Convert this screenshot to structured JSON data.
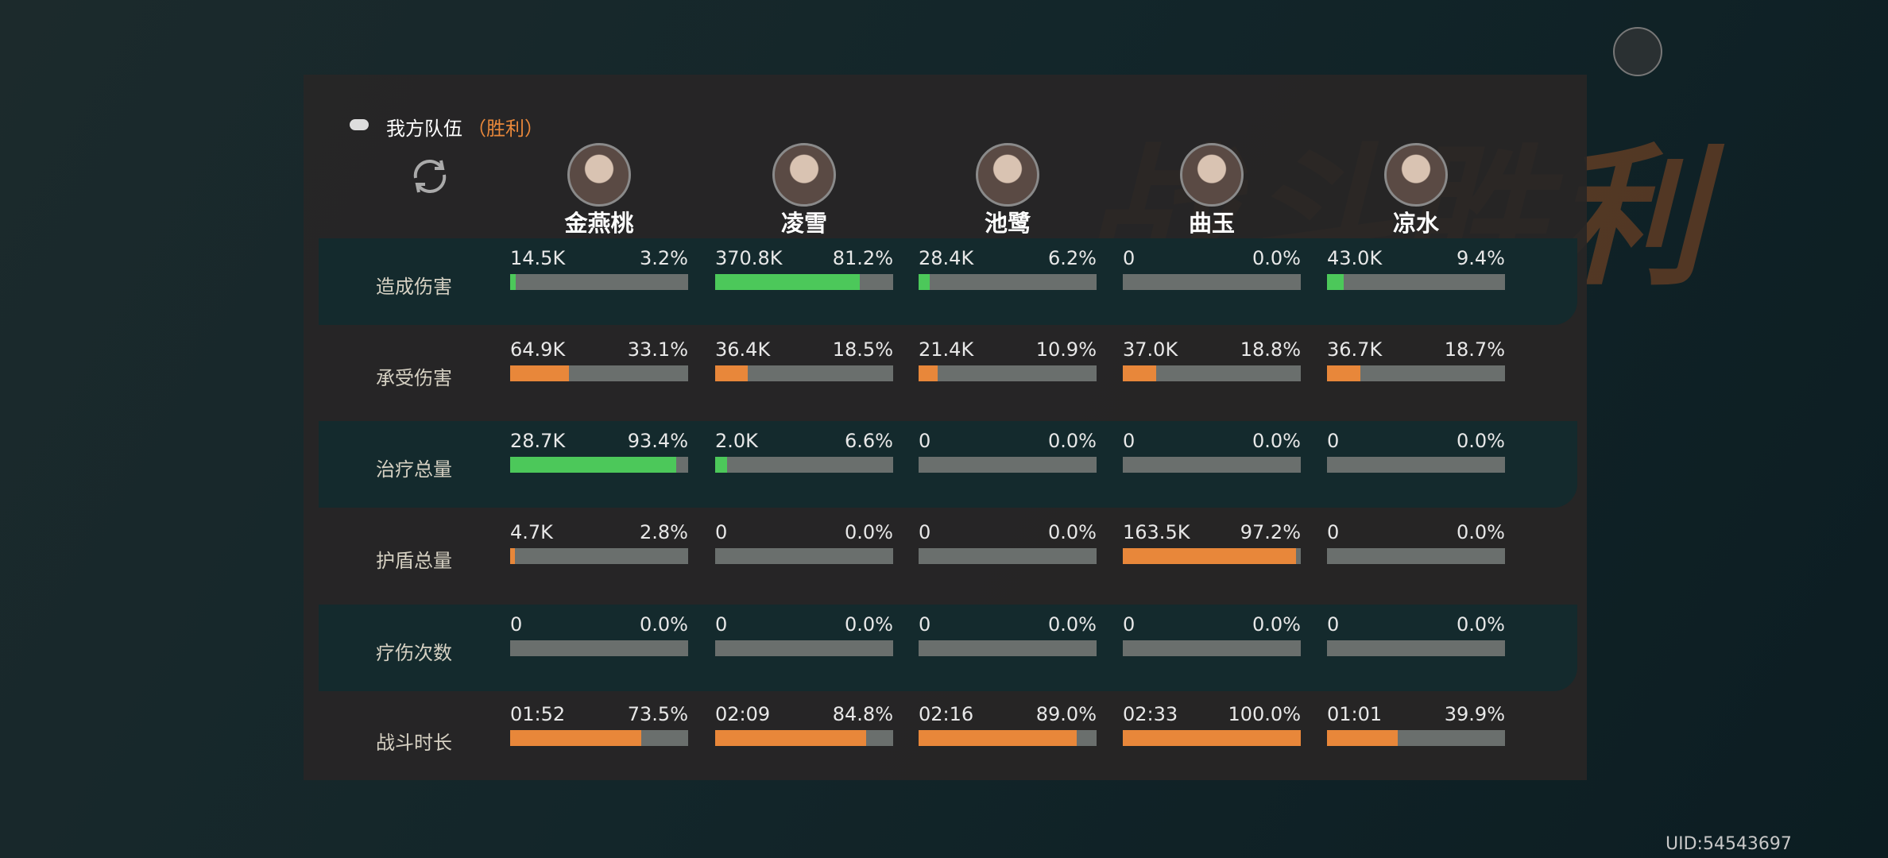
{
  "header": {
    "title": "我方队伍",
    "result": "（胜利）"
  },
  "background_title": "战斗胜利",
  "characters": [
    "金燕桃",
    "凌雪",
    "池鹭",
    "曲玉",
    "凉水"
  ],
  "rows": [
    {
      "label": "造成伤害",
      "bar_color": "#4cc85a",
      "cells": [
        {
          "value": "14.5K",
          "percent": "3.2%"
        },
        {
          "value": "370.8K",
          "percent": "81.2%"
        },
        {
          "value": "28.4K",
          "percent": "6.2%"
        },
        {
          "value": "0",
          "percent": "0.0%"
        },
        {
          "value": "43.0K",
          "percent": "9.4%"
        }
      ]
    },
    {
      "label": "承受伤害",
      "bar_color": "#e8873a",
      "cells": [
        {
          "value": "64.9K",
          "percent": "33.1%"
        },
        {
          "value": "36.4K",
          "percent": "18.5%"
        },
        {
          "value": "21.4K",
          "percent": "10.9%"
        },
        {
          "value": "37.0K",
          "percent": "18.8%"
        },
        {
          "value": "36.7K",
          "percent": "18.7%"
        }
      ]
    },
    {
      "label": "治疗总量",
      "bar_color": "#4cc85a",
      "cells": [
        {
          "value": "28.7K",
          "percent": "93.4%"
        },
        {
          "value": "2.0K",
          "percent": "6.6%"
        },
        {
          "value": "0",
          "percent": "0.0%"
        },
        {
          "value": "0",
          "percent": "0.0%"
        },
        {
          "value": "0",
          "percent": "0.0%"
        }
      ]
    },
    {
      "label": "护盾总量",
      "bar_color": "#e8873a",
      "cells": [
        {
          "value": "4.7K",
          "percent": "2.8%"
        },
        {
          "value": "0",
          "percent": "0.0%"
        },
        {
          "value": "0",
          "percent": "0.0%"
        },
        {
          "value": "163.5K",
          "percent": "97.2%"
        },
        {
          "value": "0",
          "percent": "0.0%"
        }
      ]
    },
    {
      "label": "疗伤次数",
      "bar_color": "#e8873a",
      "cells": [
        {
          "value": "0",
          "percent": "0.0%"
        },
        {
          "value": "0",
          "percent": "0.0%"
        },
        {
          "value": "0",
          "percent": "0.0%"
        },
        {
          "value": "0",
          "percent": "0.0%"
        },
        {
          "value": "0",
          "percent": "0.0%"
        }
      ]
    },
    {
      "label": "战斗时长",
      "bar_color": "#e8873a",
      "cells": [
        {
          "value": "01:52",
          "percent": "73.5%"
        },
        {
          "value": "02:09",
          "percent": "84.8%"
        },
        {
          "value": "02:16",
          "percent": "89.0%"
        },
        {
          "value": "02:33",
          "percent": "100.0%"
        },
        {
          "value": "01:01",
          "percent": "39.9%"
        }
      ]
    }
  ],
  "uid": "UID:54543697"
}
